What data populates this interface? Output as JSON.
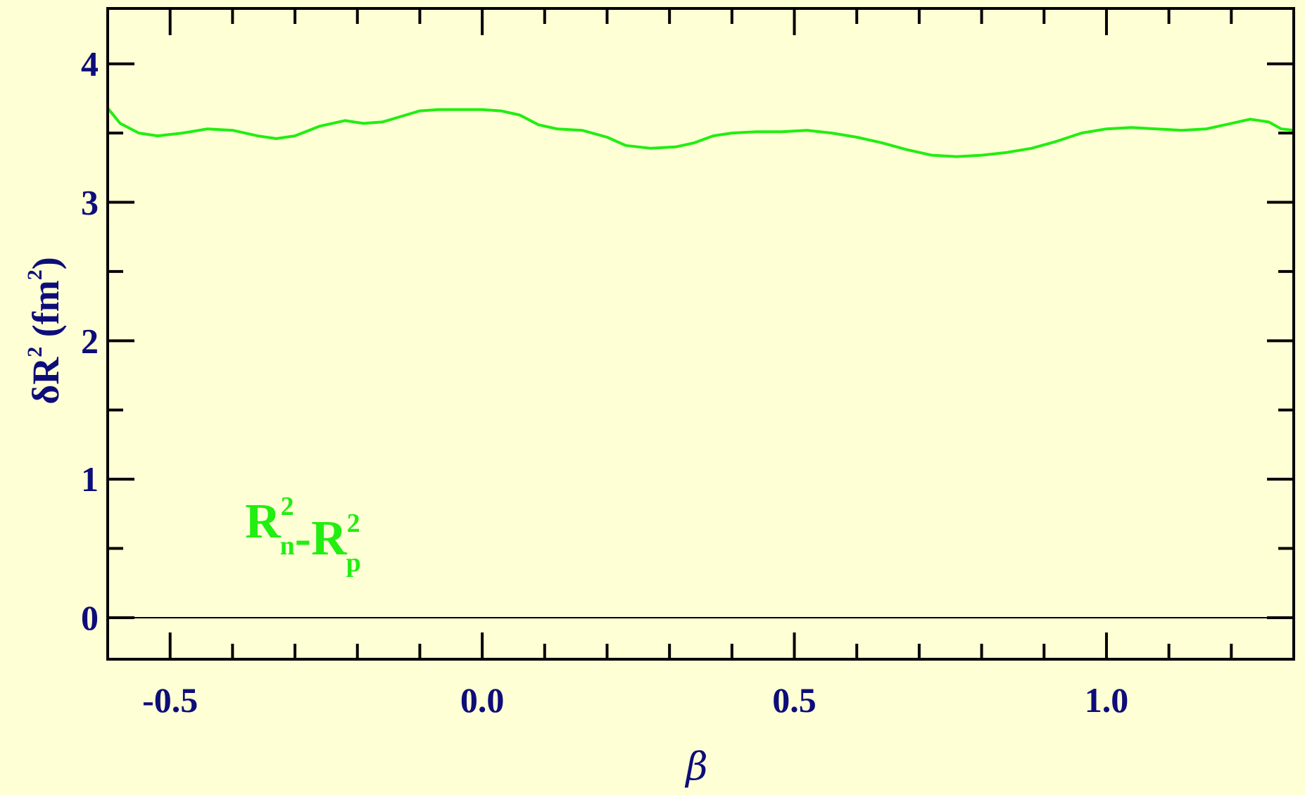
{
  "chart_data": {
    "type": "line",
    "xlabel": "β",
    "ylabel": {
      "main": "δR",
      "sup": "2",
      "unit_open": " (fm",
      "unit_sup": "2",
      "unit_close": ")"
    },
    "xlim": [
      -0.6,
      1.3
    ],
    "ylim": [
      -0.3,
      4.4
    ],
    "xticks": [
      -0.5,
      0.0,
      0.5,
      1.0
    ],
    "xtick_labels": [
      "-0.5",
      "0.0",
      "0.5",
      "1.0"
    ],
    "xminor_step": 0.1,
    "yticks": [
      0,
      1,
      2,
      3,
      4
    ],
    "ytick_labels": [
      "0",
      "1",
      "2",
      "3",
      "4"
    ],
    "yminor_step": 0.5,
    "reference_line_y": 0,
    "grid": false,
    "colors": {
      "background": "#ffffd6",
      "axis": "#000000",
      "labels": "#0d0d7a",
      "series": "#22ee11"
    },
    "annotation": {
      "parts": [
        {
          "text": "R",
          "sub": "n",
          "sup": "2"
        },
        {
          "text": "-",
          "sub": "",
          "sup": ""
        },
        {
          "text": "R",
          "sub": "p",
          "sup": "2"
        }
      ],
      "x": -0.38,
      "y": 0.58
    },
    "series": [
      {
        "x": [
          -0.6,
          -0.58,
          -0.55,
          -0.52,
          -0.48,
          -0.44,
          -0.4,
          -0.36,
          -0.33,
          -0.3,
          -0.26,
          -0.22,
          -0.19,
          -0.16,
          -0.13,
          -0.1,
          -0.07,
          -0.04,
          0.0,
          0.03,
          0.06,
          0.09,
          0.12,
          0.16,
          0.2,
          0.23,
          0.27,
          0.31,
          0.34,
          0.37,
          0.4,
          0.44,
          0.48,
          0.52,
          0.56,
          0.6,
          0.64,
          0.68,
          0.72,
          0.76,
          0.8,
          0.84,
          0.88,
          0.92,
          0.96,
          1.0,
          1.04,
          1.08,
          1.12,
          1.16,
          1.2,
          1.23,
          1.26,
          1.28,
          1.3
        ],
        "y": [
          3.68,
          3.57,
          3.5,
          3.48,
          3.5,
          3.53,
          3.52,
          3.48,
          3.46,
          3.48,
          3.55,
          3.59,
          3.57,
          3.58,
          3.62,
          3.66,
          3.67,
          3.67,
          3.67,
          3.66,
          3.63,
          3.56,
          3.53,
          3.52,
          3.47,
          3.41,
          3.39,
          3.4,
          3.43,
          3.48,
          3.5,
          3.51,
          3.51,
          3.52,
          3.5,
          3.47,
          3.43,
          3.38,
          3.34,
          3.33,
          3.34,
          3.36,
          3.39,
          3.44,
          3.5,
          3.53,
          3.54,
          3.53,
          3.52,
          3.53,
          3.57,
          3.6,
          3.58,
          3.53,
          3.52
        ]
      }
    ]
  }
}
